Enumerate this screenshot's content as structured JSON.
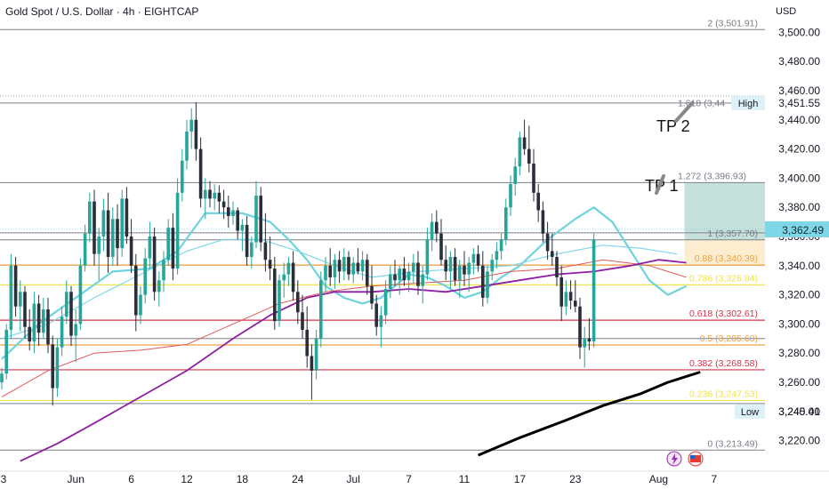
{
  "header": {
    "symbol_title": "Gold Spot / U.S. Dollar · 4h · EIGHTCAP",
    "currency": "USD"
  },
  "colors": {
    "up_candle": "#26a69a",
    "down_candle": "#2a2e39",
    "ema_fast": "#6fd3df",
    "ema_mid": "#80d8ea",
    "ema_slow_red": "#e05a5a",
    "ema_purple": "#8e1fa0",
    "sma_black": "#000000",
    "fib_red": "#d4344b",
    "fib_orange": "#f0a040",
    "fib_yellow": "#f2e24b",
    "fib_gray": "#787b86",
    "tp_zone": "#bcdcd6",
    "price_badge": "#dff1f8",
    "event_lightning": "#9c27b0",
    "event_flag": "#e53935"
  },
  "chart_data": {
    "type": "candlestick",
    "title": "Gold Spot / U.S. Dollar · 4h · EIGHTCAP",
    "ylim": [
      3210,
      3510
    ],
    "y_ticks": [
      3220,
      3240,
      3260,
      3280,
      3300,
      3320,
      3340,
      3360,
      3380,
      3400,
      3420,
      3440,
      3460,
      3480,
      3500
    ],
    "y_tick_labels": [
      "3,220.00",
      "3,240.00",
      "3,260.00",
      "3,280.00",
      "3,300.00",
      "3,320.00",
      "3,340.00",
      "3,360.00",
      "3,380.00",
      "3,400.00",
      "3,420.00",
      "3,440.00",
      "3,460.00",
      "3,480.00",
      "3,500.00"
    ],
    "x_ticks": [
      {
        "label": "3",
        "idx": 0
      },
      {
        "label": "Jun",
        "idx": 16
      },
      {
        "label": "6",
        "idx": 28
      },
      {
        "label": "12",
        "idx": 40
      },
      {
        "label": "18",
        "idx": 52
      },
      {
        "label": "24",
        "idx": 64
      },
      {
        "label": "Jul",
        "idx": 76
      },
      {
        "label": "7",
        "idx": 88
      },
      {
        "label": "11",
        "idx": 100
      },
      {
        "label": "17",
        "idx": 112
      },
      {
        "label": "23",
        "idx": 124
      },
      {
        "label": "Aug",
        "idx": 142
      },
      {
        "label": "7",
        "idx": 154
      }
    ],
    "candles": [
      [
        3260,
        3270,
        3255,
        3266
      ],
      [
        3266,
        3300,
        3262,
        3296
      ],
      [
        3296,
        3348,
        3290,
        3340
      ],
      [
        3340,
        3346,
        3305,
        3312
      ],
      [
        3312,
        3330,
        3295,
        3322
      ],
      [
        3322,
        3326,
        3290,
        3298
      ],
      [
        3298,
        3310,
        3282,
        3288
      ],
      [
        3288,
        3322,
        3280,
        3314
      ],
      [
        3314,
        3320,
        3285,
        3294
      ],
      [
        3294,
        3318,
        3290,
        3310
      ],
      [
        3310,
        3318,
        3280,
        3286
      ],
      [
        3286,
        3292,
        3244,
        3256
      ],
      [
        3256,
        3290,
        3250,
        3284
      ],
      [
        3284,
        3312,
        3278,
        3305
      ],
      [
        3305,
        3330,
        3300,
        3322
      ],
      [
        3322,
        3326,
        3285,
        3292
      ],
      [
        3292,
        3310,
        3274,
        3300
      ],
      [
        3300,
        3345,
        3296,
        3340
      ],
      [
        3340,
        3368,
        3336,
        3362
      ],
      [
        3362,
        3390,
        3356,
        3384
      ],
      [
        3384,
        3392,
        3340,
        3348
      ],
      [
        3348,
        3366,
        3330,
        3360
      ],
      [
        3360,
        3386,
        3350,
        3378
      ],
      [
        3378,
        3390,
        3335,
        3346
      ],
      [
        3346,
        3380,
        3340,
        3372
      ],
      [
        3372,
        3382,
        3340,
        3352
      ],
      [
        3352,
        3392,
        3346,
        3386
      ],
      [
        3386,
        3394,
        3355,
        3360
      ],
      [
        3360,
        3372,
        3335,
        3340
      ],
      [
        3340,
        3348,
        3295,
        3306
      ],
      [
        3306,
        3326,
        3300,
        3320
      ],
      [
        3320,
        3352,
        3314,
        3345
      ],
      [
        3345,
        3370,
        3338,
        3360
      ],
      [
        3360,
        3366,
        3316,
        3322
      ],
      [
        3322,
        3336,
        3312,
        3330
      ],
      [
        3330,
        3350,
        3322,
        3344
      ],
      [
        3344,
        3372,
        3340,
        3366
      ],
      [
        3366,
        3376,
        3330,
        3338
      ],
      [
        3338,
        3400,
        3334,
        3390
      ],
      [
        3390,
        3420,
        3384,
        3412
      ],
      [
        3412,
        3440,
        3406,
        3432
      ],
      [
        3432,
        3448,
        3420,
        3440
      ],
      [
        3440,
        3452,
        3412,
        3420
      ],
      [
        3420,
        3428,
        3380,
        3386
      ],
      [
        3386,
        3400,
        3372,
        3392
      ],
      [
        3392,
        3398,
        3380,
        3386
      ],
      [
        3386,
        3396,
        3378,
        3390
      ],
      [
        3390,
        3395,
        3376,
        3384
      ],
      [
        3384,
        3392,
        3372,
        3380
      ],
      [
        3380,
        3388,
        3366,
        3374
      ],
      [
        3374,
        3384,
        3368,
        3378
      ],
      [
        3378,
        3380,
        3358,
        3364
      ],
      [
        3364,
        3372,
        3350,
        3368
      ],
      [
        3368,
        3374,
        3340,
        3346
      ],
      [
        3346,
        3360,
        3338,
        3356
      ],
      [
        3356,
        3398,
        3352,
        3388
      ],
      [
        3388,
        3394,
        3350,
        3356
      ],
      [
        3356,
        3376,
        3336,
        3344
      ],
      [
        3344,
        3360,
        3330,
        3338
      ],
      [
        3338,
        3346,
        3296,
        3302
      ],
      [
        3302,
        3334,
        3298,
        3330
      ],
      [
        3330,
        3342,
        3318,
        3334
      ],
      [
        3334,
        3346,
        3326,
        3342
      ],
      [
        3342,
        3350,
        3316,
        3322
      ],
      [
        3322,
        3330,
        3300,
        3308
      ],
      [
        3308,
        3320,
        3290,
        3296
      ],
      [
        3296,
        3312,
        3270,
        3278
      ],
      [
        3278,
        3286,
        3248,
        3268
      ],
      [
        3268,
        3296,
        3262,
        3290
      ],
      [
        3290,
        3336,
        3284,
        3330
      ],
      [
        3330,
        3346,
        3322,
        3340
      ],
      [
        3340,
        3352,
        3326,
        3332
      ],
      [
        3332,
        3348,
        3324,
        3344
      ],
      [
        3344,
        3350,
        3328,
        3336
      ],
      [
        3336,
        3352,
        3330,
        3346
      ],
      [
        3346,
        3350,
        3330,
        3334
      ],
      [
        3334,
        3346,
        3328,
        3342
      ],
      [
        3342,
        3352,
        3334,
        3336
      ],
      [
        3336,
        3350,
        3330,
        3344
      ],
      [
        3344,
        3348,
        3320,
        3326
      ],
      [
        3326,
        3340,
        3310,
        3314
      ],
      [
        3314,
        3320,
        3292,
        3298
      ],
      [
        3298,
        3312,
        3284,
        3306
      ],
      [
        3306,
        3330,
        3300,
        3324
      ],
      [
        3324,
        3340,
        3318,
        3334
      ],
      [
        3334,
        3344,
        3326,
        3330
      ],
      [
        3330,
        3340,
        3320,
        3338
      ],
      [
        3338,
        3346,
        3326,
        3330
      ],
      [
        3330,
        3342,
        3322,
        3336
      ],
      [
        3336,
        3348,
        3328,
        3342
      ],
      [
        3342,
        3350,
        3320,
        3326
      ],
      [
        3326,
        3340,
        3314,
        3334
      ],
      [
        3334,
        3366,
        3330,
        3358
      ],
      [
        3358,
        3376,
        3350,
        3370
      ],
      [
        3370,
        3378,
        3356,
        3362
      ],
      [
        3362,
        3372,
        3340,
        3344
      ],
      [
        3344,
        3354,
        3330,
        3336
      ],
      [
        3336,
        3350,
        3324,
        3346
      ],
      [
        3346,
        3352,
        3326,
        3330
      ],
      [
        3330,
        3344,
        3318,
        3340
      ],
      [
        3340,
        3350,
        3326,
        3334
      ],
      [
        3334,
        3346,
        3322,
        3342
      ],
      [
        3342,
        3352,
        3334,
        3348
      ],
      [
        3348,
        3354,
        3336,
        3340
      ],
      [
        3340,
        3350,
        3312,
        3318
      ],
      [
        3318,
        3340,
        3314,
        3336
      ],
      [
        3336,
        3348,
        3330,
        3344
      ],
      [
        3344,
        3356,
        3338,
        3350
      ],
      [
        3350,
        3362,
        3344,
        3358
      ],
      [
        3358,
        3386,
        3354,
        3380
      ],
      [
        3380,
        3402,
        3374,
        3396
      ],
      [
        3396,
        3414,
        3388,
        3408
      ],
      [
        3408,
        3432,
        3402,
        3428
      ],
      [
        3428,
        3440,
        3416,
        3420
      ],
      [
        3420,
        3436,
        3404,
        3410
      ],
      [
        3410,
        3420,
        3384,
        3390
      ],
      [
        3390,
        3396,
        3370,
        3378
      ],
      [
        3378,
        3384,
        3356,
        3362
      ],
      [
        3362,
        3370,
        3344,
        3350
      ],
      [
        3350,
        3362,
        3340,
        3346
      ],
      [
        3346,
        3350,
        3326,
        3332
      ],
      [
        3332,
        3340,
        3302,
        3312
      ],
      [
        3312,
        3330,
        3306,
        3322
      ],
      [
        3322,
        3330,
        3310,
        3316
      ],
      [
        3316,
        3330,
        3308,
        3312
      ],
      [
        3312,
        3318,
        3276,
        3284
      ],
      [
        3284,
        3298,
        3270,
        3290
      ],
      [
        3290,
        3304,
        3282,
        3288
      ],
      [
        3288,
        3362,
        3284,
        3358
      ]
    ],
    "series": [
      {
        "name": "",
        "color": "#6fd3df",
        "width": 2.2,
        "values": [
          [
            0,
            3276
          ],
          [
            8,
            3300
          ],
          [
            16,
            3318
          ],
          [
            24,
            3336
          ],
          [
            32,
            3338
          ],
          [
            38,
            3350
          ],
          [
            44,
            3376
          ],
          [
            52,
            3376
          ],
          [
            58,
            3370
          ],
          [
            62,
            3358
          ],
          [
            66,
            3344
          ],
          [
            70,
            3326
          ],
          [
            74,
            3318
          ],
          [
            78,
            3314
          ],
          [
            82,
            3318
          ],
          [
            88,
            3334
          ],
          [
            92,
            3332
          ],
          [
            96,
            3326
          ],
          [
            100,
            3318
          ],
          [
            104,
            3322
          ],
          [
            108,
            3332
          ],
          [
            112,
            3340
          ],
          [
            118,
            3358
          ],
          [
            124,
            3372
          ],
          [
            128,
            3380
          ],
          [
            132,
            3370
          ],
          [
            136,
            3350
          ],
          [
            140,
            3330
          ],
          [
            144,
            3320
          ],
          [
            148,
            3326
          ]
        ]
      },
      {
        "name": "",
        "color": "#80d8ea",
        "width": 1.2,
        "values": [
          [
            0,
            3290
          ],
          [
            10,
            3300
          ],
          [
            20,
            3318
          ],
          [
            30,
            3334
          ],
          [
            40,
            3350
          ],
          [
            48,
            3358
          ],
          [
            56,
            3358
          ],
          [
            64,
            3350
          ],
          [
            72,
            3340
          ],
          [
            80,
            3332
          ],
          [
            90,
            3336
          ],
          [
            100,
            3338
          ],
          [
            110,
            3340
          ],
          [
            120,
            3348
          ],
          [
            130,
            3354
          ],
          [
            138,
            3352
          ],
          [
            146,
            3348
          ]
        ]
      },
      {
        "name": "",
        "color": "#e05a5a",
        "width": 1,
        "values": [
          [
            0,
            3250
          ],
          [
            10,
            3268
          ],
          [
            20,
            3280
          ],
          [
            30,
            3282
          ],
          [
            40,
            3286
          ],
          [
            50,
            3300
          ],
          [
            60,
            3314
          ],
          [
            70,
            3322
          ],
          [
            80,
            3326
          ],
          [
            90,
            3328
          ],
          [
            100,
            3330
          ],
          [
            110,
            3336
          ],
          [
            120,
            3338
          ],
          [
            130,
            3344
          ],
          [
            140,
            3340
          ],
          [
            148,
            3332
          ]
        ]
      },
      {
        "name": "",
        "color": "#8e1fa0",
        "width": 1.8,
        "values": [
          [
            4,
            3206
          ],
          [
            12,
            3218
          ],
          [
            20,
            3232
          ],
          [
            30,
            3250
          ],
          [
            40,
            3268
          ],
          [
            50,
            3290
          ],
          [
            58,
            3306
          ],
          [
            66,
            3318
          ],
          [
            72,
            3322
          ],
          [
            80,
            3322
          ],
          [
            88,
            3324
          ],
          [
            96,
            3322
          ],
          [
            104,
            3326
          ],
          [
            112,
            3330
          ],
          [
            120,
            3334
          ],
          [
            128,
            3336
          ],
          [
            136,
            3340
          ],
          [
            142,
            3344
          ],
          [
            148,
            3342
          ]
        ]
      },
      {
        "name": "",
        "color": "#000000",
        "width": 3,
        "values": [
          [
            103,
            3210
          ],
          [
            112,
            3222
          ],
          [
            122,
            3234
          ],
          [
            130,
            3244
          ],
          [
            138,
            3252
          ],
          [
            144,
            3260
          ],
          [
            151,
            3267
          ]
        ]
      }
    ],
    "fib_levels": [
      {
        "ratio": "0",
        "price": 3213.49,
        "label": "0 (3,213.49)",
        "color": "#787b86"
      },
      {
        "ratio": "0.236",
        "price": 3247.53,
        "label": "0.236 (3,247.53)",
        "color": "#f2e24b"
      },
      {
        "ratio": "0.382",
        "price": 3268.58,
        "label": "0.382 (3,268.58)",
        "color": "#d4344b"
      },
      {
        "ratio": "0.5",
        "price": 3285.6,
        "label": "0.5 (3,285.60)",
        "color": "#f0a040"
      },
      {
        "ratio": "0.618",
        "price": 3302.61,
        "label": "0.618 (3,302.61)",
        "color": "#d4344b"
      },
      {
        "ratio": "0.786",
        "price": 3326.84,
        "label": "0.786 (3,326.84)",
        "color": "#f2e24b"
      },
      {
        "ratio": "0.88",
        "price": 3340.39,
        "label": "0.88 (3,340.39)",
        "color": "#f0a040"
      },
      {
        "ratio": "1",
        "price": 3357.7,
        "label": "1 (3,357.70)",
        "color": "#787b86"
      },
      {
        "ratio": "1.272",
        "price": 3396.93,
        "label": "1.272 (3,396.93)",
        "color": "#787b86"
      },
      {
        "ratio": "1.618",
        "price": 3446.8,
        "label": "1.618 (3,44",
        "color": "#787b86"
      },
      {
        "ratio": "2",
        "price": 3501.91,
        "label": "2 (3,501.91)",
        "color": "#787b86"
      }
    ],
    "horizontal_lines": [
      3501.91,
      3451.55,
      3396.93,
      3362.49,
      3357.7,
      3340.39,
      3290,
      3245.41,
      3213.49
    ],
    "price_labels": {
      "high": {
        "label": "High",
        "value": "3,451.55",
        "price": 3451.55
      },
      "current": {
        "value": "3,362.49",
        "price": 3362.49
      },
      "low": {
        "label": "Low",
        "value": "3,245.41",
        "price": 3245.41
      }
    },
    "targets": [
      {
        "label": "TP 1",
        "price": 3396.93
      },
      {
        "label": "TP 2",
        "price": 3446.8
      }
    ],
    "tp_zone": {
      "from_price": 3357.7,
      "to_price": 3396.93,
      "from_idx": 148,
      "to_idx": 160
    }
  }
}
